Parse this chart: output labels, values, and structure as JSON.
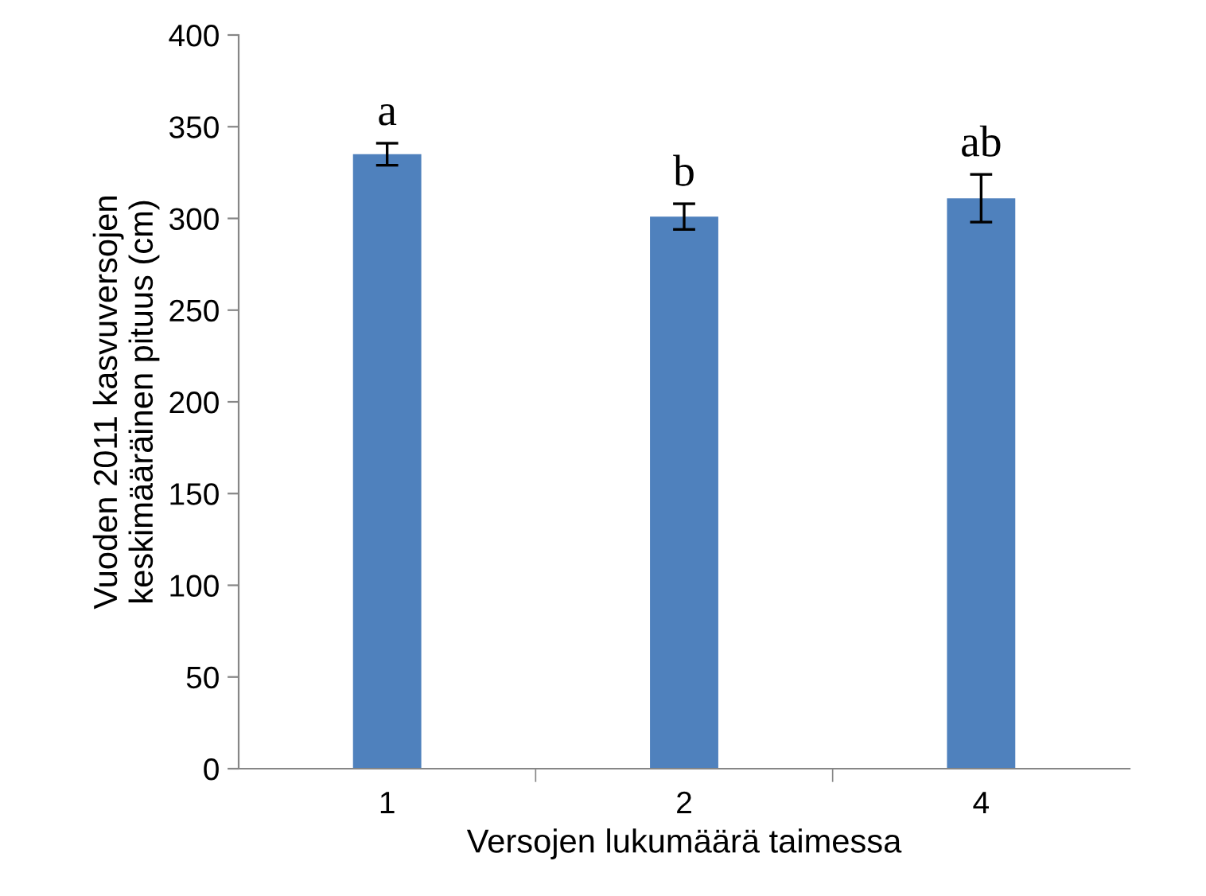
{
  "chart_data": {
    "type": "bar",
    "xlabel": "Versojen lukumäärä taimessa",
    "ylabel": "Vuoden 2011 kasvuversojen\nkeskimääräinen pituus (cm)",
    "categories": [
      "1",
      "2",
      "4"
    ],
    "series": [
      {
        "color": "#4f81bd",
        "values": [
          335,
          301,
          311
        ],
        "errors": [
          6,
          7,
          13
        ]
      }
    ],
    "ylim": [
      0,
      400
    ],
    "yticks": [
      0,
      50,
      100,
      150,
      200,
      250,
      300,
      350,
      400
    ],
    "grid": false,
    "legend": false,
    "annotations": [
      {
        "text": "a",
        "x": "1",
        "y": 341
      },
      {
        "text": "b",
        "x": "2",
        "y": 308
      },
      {
        "text": "ab",
        "x": "4",
        "y": 324
      }
    ]
  }
}
